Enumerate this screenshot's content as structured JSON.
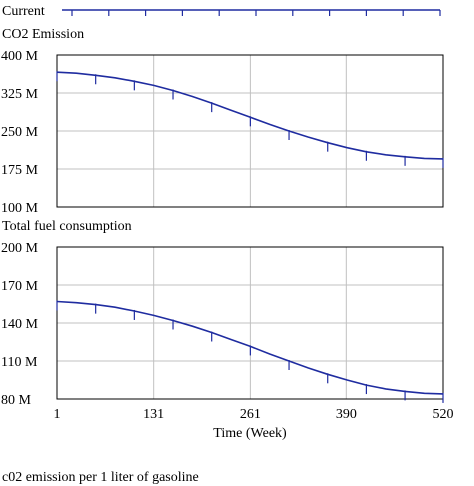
{
  "legend": {
    "label": "Current",
    "color": "#1f2ca0"
  },
  "footer_text": "c02 emission per 1 liter of gasoline",
  "colors": {
    "series": "#1f2ca0",
    "grid": "#c0c0c0",
    "frame": "#000000"
  },
  "chart_data": [
    {
      "type": "line",
      "title": "CO2 Emission",
      "xlabel": "",
      "ylabel": "",
      "xlim": [
        1,
        520
      ],
      "ylim": [
        100000000,
        400000000
      ],
      "xticks": [
        1,
        131,
        261,
        390,
        520
      ],
      "yticks": [
        100000000,
        175000000,
        250000000,
        325000000,
        400000000
      ],
      "ytick_labels": [
        "100 M",
        "175 M",
        "250 M",
        "325 M",
        "400 M"
      ],
      "grid": true,
      "series": [
        {
          "name": "Current",
          "x": [
            1,
            27,
            53,
            79,
            105,
            131,
            157,
            183,
            209,
            235,
            261,
            287,
            313,
            339,
            365,
            391,
            417,
            443,
            469,
            495,
            520
          ],
          "values": [
            366000000,
            364000000,
            360000000,
            355000000,
            348000000,
            340000000,
            330000000,
            318000000,
            305000000,
            291000000,
            277000000,
            263000000,
            250000000,
            238000000,
            227000000,
            217000000,
            209000000,
            203000000,
            199000000,
            196000000,
            195000000
          ]
        }
      ]
    },
    {
      "type": "line",
      "title": "Total fuel consumption",
      "xlabel": "Time (Week)",
      "ylabel": "",
      "xlim": [
        1,
        520
      ],
      "ylim": [
        80000000,
        200000000
      ],
      "xticks": [
        1,
        131,
        261,
        390,
        520
      ],
      "xtick_labels": [
        "1",
        "131",
        "261",
        "390",
        "520"
      ],
      "yticks": [
        80000000,
        110000000,
        140000000,
        170000000,
        200000000
      ],
      "ytick_labels": [
        "80 M",
        "110 M",
        "140 M",
        "170 M",
        "200 M"
      ],
      "grid": true,
      "series": [
        {
          "name": "Current",
          "x": [
            1,
            27,
            53,
            79,
            105,
            131,
            157,
            183,
            209,
            235,
            261,
            287,
            313,
            339,
            365,
            391,
            417,
            443,
            469,
            495,
            520
          ],
          "values": [
            157000000,
            156000000,
            154500000,
            152500000,
            149500000,
            146000000,
            142000000,
            137500000,
            132500000,
            127000000,
            121500000,
            115500000,
            110000000,
            104500000,
            99500000,
            95000000,
            91000000,
            88000000,
            86000000,
            84500000,
            84000000
          ]
        }
      ]
    }
  ]
}
